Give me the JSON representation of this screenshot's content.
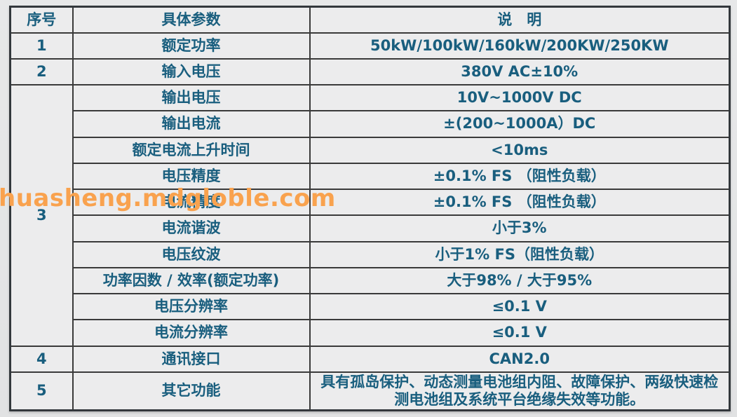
{
  "page": {
    "watermark": "huasheng.mdgloble.com"
  },
  "colors": {
    "text": "#195e7e",
    "watermark": "#f9a24e",
    "border": "#3a3a3a",
    "cell_background": "#ececed",
    "page_background": "#e5e6e7"
  },
  "table": {
    "headers": [
      "序号",
      "具体参数",
      "说　明"
    ],
    "rows": [
      {
        "seq": "1",
        "param": "额定功率",
        "desc": "50kW/100kW/160kW/200KW/250KW"
      },
      {
        "seq": "2",
        "param": "输入电压",
        "desc": "380V AC±10%"
      },
      {
        "seq": "3",
        "seq_rowspan": 10,
        "param": "输出电压",
        "desc": "10V~1000V DC"
      },
      {
        "param": "输出电流",
        "desc": "±(200~1000A）DC"
      },
      {
        "param": "额定电流上升时间",
        "desc": "<10ms"
      },
      {
        "param": "电压精度",
        "desc": "±0.1% FS （阻性负载）"
      },
      {
        "param": "电流精度",
        "desc": "±0.1% FS （阻性负载）"
      },
      {
        "param": "电流谐波",
        "desc": "小于3%"
      },
      {
        "param": "电压纹波",
        "desc": "小于1% FS（阻性负载）"
      },
      {
        "param": "功率因数 / 效率(额定功率)",
        "desc": "大于98% / 大于95%"
      },
      {
        "param": "电压分辨率",
        "desc": "≤0.1 V"
      },
      {
        "param": "电流分辨率",
        "desc": "≤0.1 V"
      },
      {
        "seq": "4",
        "param": "通讯接口",
        "desc": "CAN2.0"
      },
      {
        "seq": "5",
        "param": "其它功能",
        "desc": "具有孤岛保护、动态测量电池组内阻、故障保护、两级快速检测电池组及系统平台绝缘失效等功能。"
      }
    ]
  }
}
